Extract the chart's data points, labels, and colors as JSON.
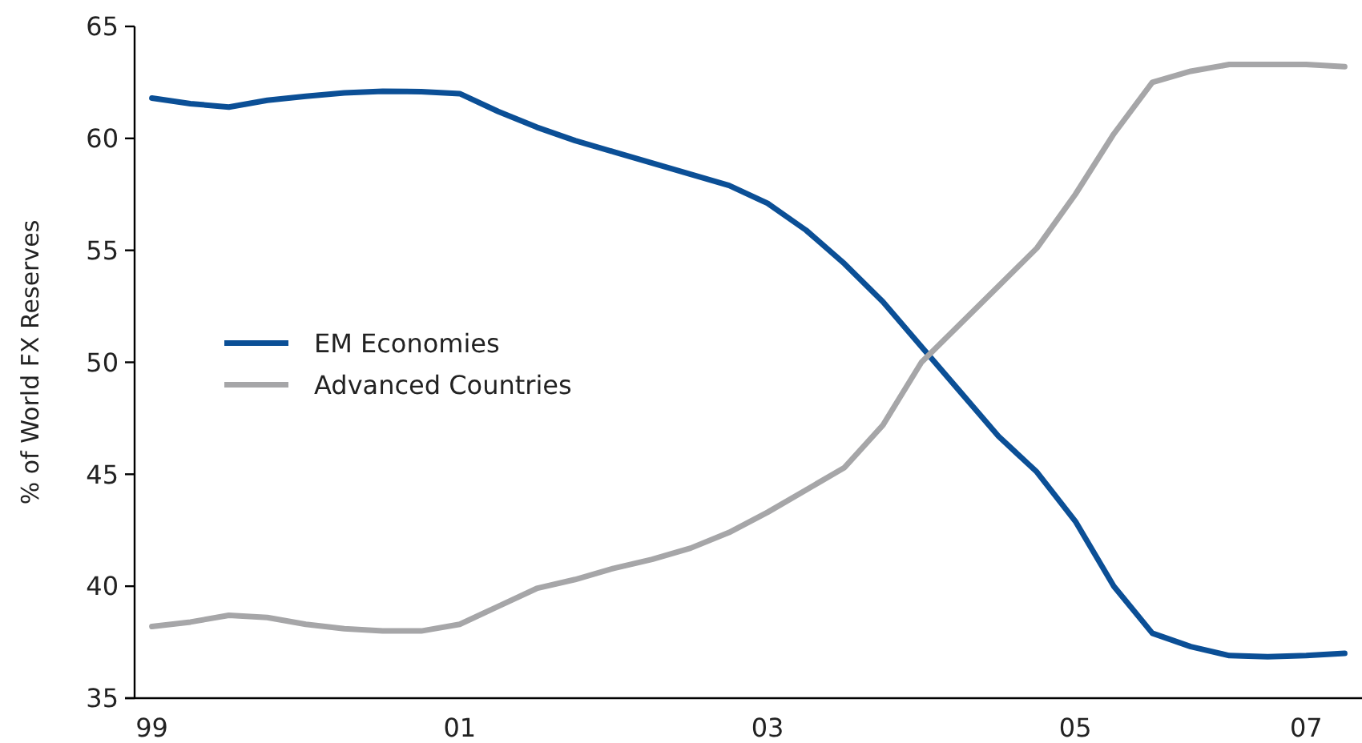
{
  "chart_data": {
    "type": "line",
    "ylabel": "% of World FX Reserves",
    "categories": [
      "99",
      null,
      null,
      null,
      null,
      null,
      null,
      null,
      "01",
      null,
      null,
      null,
      null,
      null,
      null,
      null,
      "03",
      null,
      null,
      null,
      null,
      null,
      null,
      null,
      "05",
      null,
      null,
      null,
      null,
      null,
      "07",
      null
    ],
    "ylim": [
      35,
      65
    ],
    "yticks": [
      35,
      40,
      45,
      50,
      55,
      60,
      65
    ],
    "grid": false,
    "legend": "left",
    "marker": "none",
    "line_style": "solid",
    "series": [
      {
        "name": "EM Economies",
        "color": "#0b4f96",
        "values": [
          61.8,
          61.55,
          61.4,
          61.7,
          61.88,
          62.03,
          62.1,
          62.09,
          62.0,
          61.2,
          60.5,
          59.9,
          59.4,
          58.9,
          58.4,
          57.9,
          57.1,
          55.9,
          54.4,
          52.7,
          50.7,
          48.7,
          46.7,
          45.1,
          42.9,
          40.0,
          37.9,
          37.3,
          36.9,
          36.85,
          36.9,
          37.0
        ]
      },
      {
        "name": "Advanced Countries",
        "color": "#a6a6a8",
        "values": [
          38.2,
          38.4,
          38.7,
          38.6,
          38.3,
          38.1,
          38.0,
          38.0,
          38.3,
          39.1,
          39.9,
          40.3,
          40.8,
          41.2,
          41.7,
          42.4,
          43.3,
          44.3,
          45.3,
          47.2,
          50.0,
          51.7,
          53.4,
          55.1,
          57.5,
          60.2,
          62.5,
          63.0,
          63.3,
          63.3,
          63.3,
          63.2
        ]
      }
    ]
  }
}
